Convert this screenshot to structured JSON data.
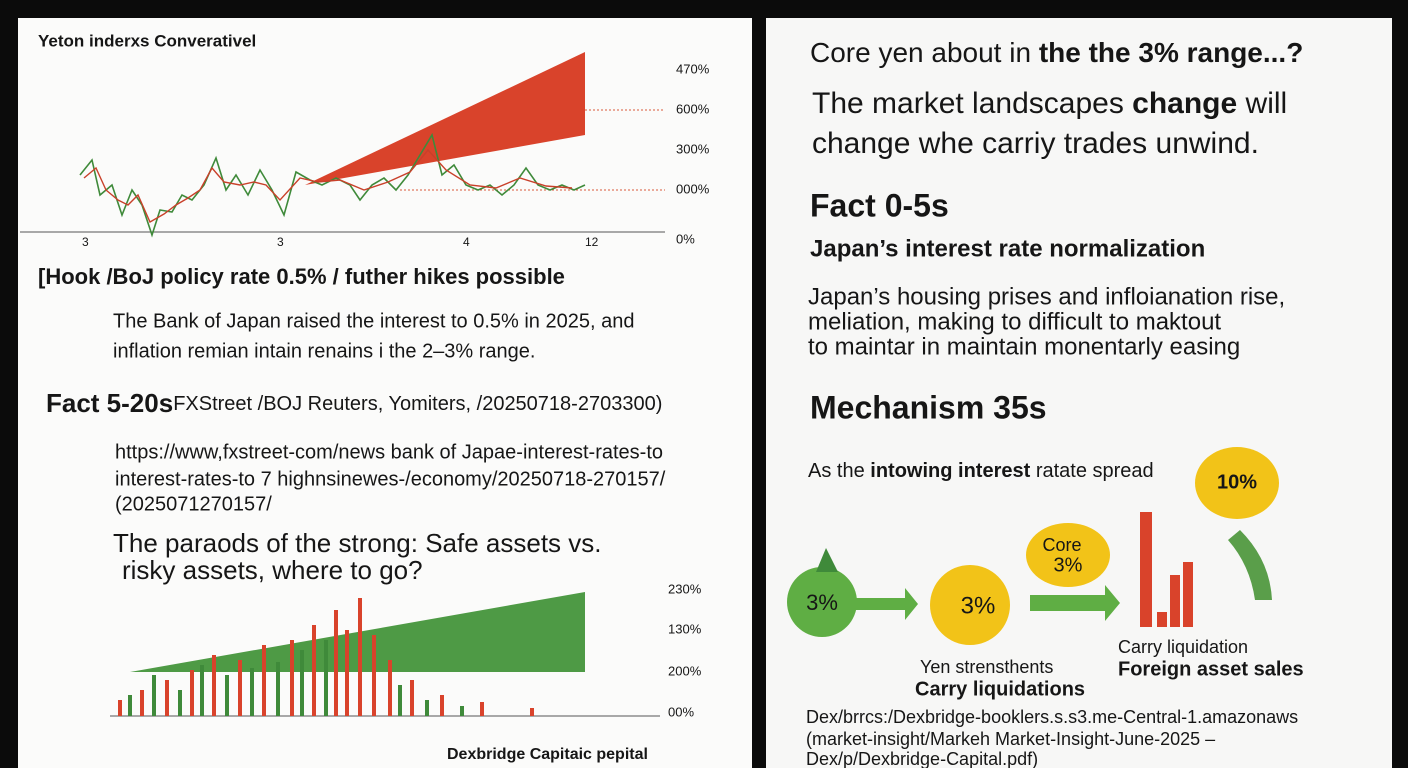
{
  "left_panel": {
    "chart_title": "Yeton inderxs Converativel",
    "top_chart_ticks": [
      "470%",
      "600%",
      "300%",
      "000%",
      "0%"
    ],
    "top_chart_x_labels": [
      "3",
      "3",
      "4",
      "12"
    ],
    "hook": "[Hook /BoJ policy rate 0.5% / futher hikes possible",
    "hook_body": [
      "The Bank of Japan raised the interest to 0.5% in 2025, and",
      "inflation remian intain renains i the 2–3% range."
    ],
    "fact_heading": "Fact 5-20s",
    "fact_sources": "FXStreet /BOJ Reuters, Yomiters, /20250718-2703300)",
    "url_lines": [
      "https://www,fxstreet-com/news bank of Japae-interest-rates-to",
      "interest-rates-to 7 highnsinewes-/economy/20250718-270157/",
      "(2025071270157/"
    ],
    "paradox": [
      "The paraods of the strong: Safe assets vs.",
      "risky assets, where to go?"
    ],
    "bottom_chart_ticks": [
      "230%",
      "130%",
      "200%",
      "00%"
    ],
    "footer": "Dexbridge Capitaic pepital"
  },
  "right_panel": {
    "headline_1": [
      "Core yen about in ",
      "the the 3% range...?"
    ],
    "headline_2": [
      "The market landscapes ",
      "change",
      " will"
    ],
    "headline_3": "change whe carriy trades unwind.",
    "fact_heading": "Fact 0-5s",
    "fact_subheading": "Japan’s interest rate normalization",
    "fact_body": [
      "Japan’s housing prises and infloianation rise,",
      "meliation, making to difficult to maktout",
      "to maintar in maintain monentarly easing"
    ],
    "mechanism_heading": "Mechanism 35s",
    "mechanism_intro": [
      "As the ",
      "intowing interest",
      " ratate spread"
    ],
    "bubbles": {
      "green": "3%",
      "yellow": "3%",
      "core_label": "Core",
      "core_value": "3%",
      "top": "10%"
    },
    "captions": {
      "yen": "Yen strensthents",
      "carry_bold": "Carry liquidations",
      "carry": "Carry liquidation",
      "foreign": "Foreign asset sales"
    },
    "source_lines": [
      "Dex/brrcs:/Dexbridge-booklers.s.s3.me-Central-1.amazonaws",
      "(market-insight/Markeh Market-Insight-June-2025 –",
      "Dex/p/Dexbridge-Capital.pdf)"
    ]
  }
}
